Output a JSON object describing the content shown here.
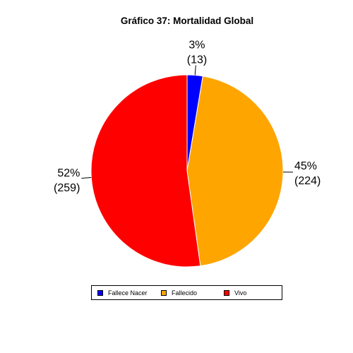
{
  "chart_data": {
    "type": "pie",
    "title": "Gráfico 37: Mortalidad Global",
    "categories": [
      "Fallece Nacer",
      "Fallecido",
      "Vivo"
    ],
    "values": [
      13,
      224,
      259
    ],
    "percent_labels": [
      "3%",
      "45%",
      "52%"
    ],
    "count_labels": [
      "(13)",
      "(224)",
      "(259)"
    ],
    "colors": [
      "#0000ff",
      "#ffa500",
      "#ff0000"
    ],
    "start": "12 o'clock",
    "direction": "clockwise",
    "legend_position": "bottom"
  }
}
